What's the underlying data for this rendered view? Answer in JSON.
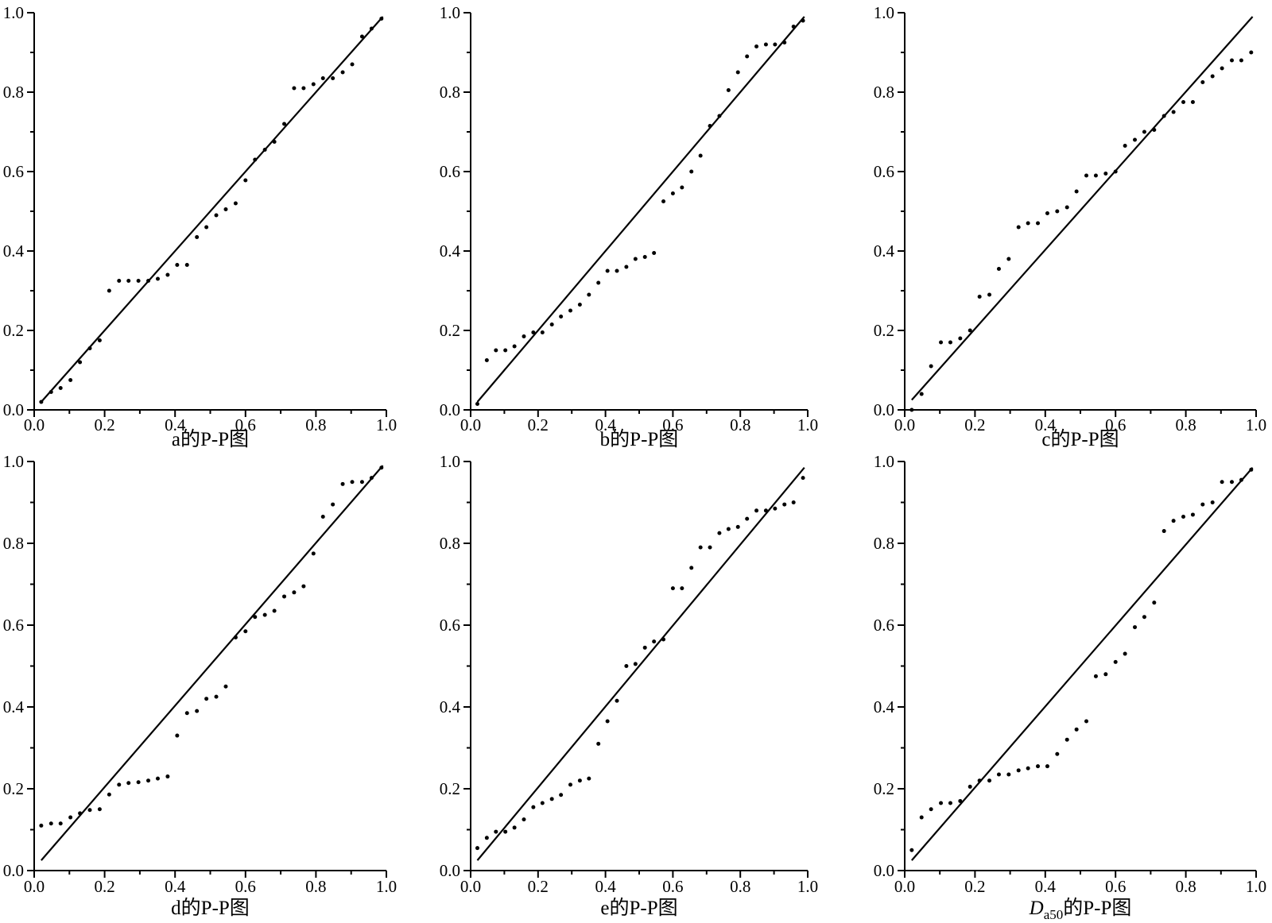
{
  "page": {
    "background": "#ffffff",
    "ink_color": "#000000"
  },
  "chart_data": [
    {
      "type": "scatter",
      "title": "a的P-P图",
      "title_parts": [
        {
          "text": "a"
        },
        {
          "text": "的P-P图"
        }
      ],
      "xlabel": "",
      "ylabel": "",
      "xlim": [
        0,
        1
      ],
      "ylim": [
        0,
        1
      ],
      "x_tick_labels": [
        "0.0",
        "0.2",
        "0.4",
        "0.6",
        "0.8",
        "1.0"
      ],
      "y_tick_labels": [
        "0.0",
        "0.2",
        "0.4",
        "0.6",
        "0.8",
        "1.0"
      ],
      "minor_tick_step": 0.1,
      "grid": false,
      "reference_line": {
        "x1": 0.02,
        "y1": 0.02,
        "x2": 0.99,
        "y2": 0.99
      },
      "point_color": "#000000",
      "line_color": "#000000",
      "x": [
        0.02,
        0.048,
        0.075,
        0.103,
        0.13,
        0.158,
        0.186,
        0.213,
        0.241,
        0.268,
        0.296,
        0.324,
        0.351,
        0.379,
        0.406,
        0.434,
        0.462,
        0.489,
        0.517,
        0.544,
        0.572,
        0.6,
        0.627,
        0.655,
        0.682,
        0.71,
        0.738,
        0.765,
        0.793,
        0.82,
        0.848,
        0.876,
        0.903,
        0.931,
        0.958,
        0.986
      ],
      "y": [
        0.02,
        0.045,
        0.055,
        0.075,
        0.12,
        0.155,
        0.175,
        0.3,
        0.325,
        0.325,
        0.325,
        0.325,
        0.33,
        0.34,
        0.365,
        0.365,
        0.435,
        0.46,
        0.49,
        0.505,
        0.52,
        0.578,
        0.63,
        0.655,
        0.675,
        0.72,
        0.81,
        0.81,
        0.82,
        0.835,
        0.835,
        0.85,
        0.87,
        0.94,
        0.96,
        0.985
      ]
    },
    {
      "type": "scatter",
      "title": "b的P-P图",
      "title_parts": [
        {
          "text": "b"
        },
        {
          "text": "的P-P图"
        }
      ],
      "xlabel": "",
      "ylabel": "",
      "xlim": [
        0,
        1
      ],
      "ylim": [
        0,
        1
      ],
      "x_tick_labels": [
        "0.0",
        "0.2",
        "0.4",
        "0.6",
        "0.8",
        "1.0"
      ],
      "y_tick_labels": [
        "0.0",
        "0.2",
        "0.4",
        "0.6",
        "0.8",
        "1.0"
      ],
      "minor_tick_step": 0.1,
      "grid": false,
      "reference_line": {
        "x1": 0.02,
        "y1": 0.02,
        "x2": 0.99,
        "y2": 0.99
      },
      "point_color": "#000000",
      "line_color": "#000000",
      "x": [
        0.02,
        0.048,
        0.075,
        0.103,
        0.13,
        0.158,
        0.186,
        0.213,
        0.241,
        0.268,
        0.296,
        0.324,
        0.351,
        0.379,
        0.406,
        0.434,
        0.462,
        0.489,
        0.517,
        0.544,
        0.572,
        0.6,
        0.627,
        0.655,
        0.682,
        0.71,
        0.738,
        0.765,
        0.793,
        0.82,
        0.848,
        0.876,
        0.903,
        0.931,
        0.958,
        0.986
      ],
      "y": [
        0.015,
        0.125,
        0.15,
        0.15,
        0.16,
        0.185,
        0.195,
        0.195,
        0.215,
        0.235,
        0.25,
        0.265,
        0.29,
        0.32,
        0.35,
        0.35,
        0.36,
        0.38,
        0.385,
        0.395,
        0.525,
        0.545,
        0.56,
        0.6,
        0.64,
        0.715,
        0.74,
        0.805,
        0.85,
        0.89,
        0.915,
        0.92,
        0.92,
        0.925,
        0.965,
        0.98
      ]
    },
    {
      "type": "scatter",
      "title": "c的P-P图",
      "title_parts": [
        {
          "text": "c"
        },
        {
          "text": "的P-P图"
        }
      ],
      "xlabel": "",
      "ylabel": "",
      "xlim": [
        0,
        1
      ],
      "ylim": [
        0,
        1
      ],
      "x_tick_labels": [
        "0.0",
        "0.2",
        "0.4",
        "0.6",
        "0.8",
        "1.0"
      ],
      "y_tick_labels": [
        "0.0",
        "0.2",
        "0.4",
        "0.6",
        "0.8",
        "1.0"
      ],
      "minor_tick_step": 0.1,
      "grid": false,
      "reference_line": {
        "x1": 0.02,
        "y1": 0.025,
        "x2": 0.99,
        "y2": 0.99
      },
      "point_color": "#000000",
      "line_color": "#000000",
      "x": [
        0.02,
        0.048,
        0.075,
        0.103,
        0.13,
        0.158,
        0.186,
        0.213,
        0.241,
        0.268,
        0.296,
        0.324,
        0.351,
        0.379,
        0.406,
        0.434,
        0.462,
        0.489,
        0.517,
        0.544,
        0.572,
        0.6,
        0.627,
        0.655,
        0.682,
        0.71,
        0.738,
        0.765,
        0.793,
        0.82,
        0.848,
        0.876,
        0.903,
        0.931,
        0.958,
        0.986
      ],
      "y": [
        0.0,
        0.04,
        0.11,
        0.17,
        0.17,
        0.18,
        0.2,
        0.285,
        0.29,
        0.355,
        0.38,
        0.46,
        0.47,
        0.47,
        0.495,
        0.5,
        0.51,
        0.55,
        0.59,
        0.59,
        0.595,
        0.6,
        0.665,
        0.68,
        0.7,
        0.705,
        0.74,
        0.75,
        0.775,
        0.775,
        0.825,
        0.84,
        0.86,
        0.88,
        0.88,
        0.9
      ]
    },
    {
      "type": "scatter",
      "title": "d的P-P图",
      "title_parts": [
        {
          "text": "d"
        },
        {
          "text": "的P-P图"
        }
      ],
      "xlabel": "",
      "ylabel": "",
      "xlim": [
        0,
        1
      ],
      "ylim": [
        0,
        1
      ],
      "x_tick_labels": [
        "0.0",
        "0.2",
        "0.4",
        "0.6",
        "0.8",
        "1.0"
      ],
      "y_tick_labels": [
        "0.0",
        "0.2",
        "0.4",
        "0.6",
        "0.8",
        "1.0"
      ],
      "minor_tick_step": 0.1,
      "grid": false,
      "reference_line": {
        "x1": 0.02,
        "y1": 0.025,
        "x2": 0.99,
        "y2": 0.99
      },
      "point_color": "#000000",
      "line_color": "#000000",
      "x": [
        0.02,
        0.048,
        0.075,
        0.103,
        0.13,
        0.158,
        0.186,
        0.213,
        0.241,
        0.268,
        0.296,
        0.324,
        0.351,
        0.379,
        0.406,
        0.434,
        0.462,
        0.489,
        0.517,
        0.544,
        0.572,
        0.6,
        0.627,
        0.655,
        0.682,
        0.71,
        0.738,
        0.765,
        0.793,
        0.82,
        0.848,
        0.876,
        0.903,
        0.931,
        0.958,
        0.986
      ],
      "y": [
        0.11,
        0.115,
        0.115,
        0.13,
        0.14,
        0.148,
        0.15,
        0.186,
        0.21,
        0.214,
        0.216,
        0.22,
        0.225,
        0.23,
        0.33,
        0.385,
        0.39,
        0.42,
        0.425,
        0.45,
        0.57,
        0.585,
        0.62,
        0.625,
        0.635,
        0.67,
        0.68,
        0.695,
        0.775,
        0.865,
        0.895,
        0.945,
        0.95,
        0.95,
        0.96,
        0.985
      ]
    },
    {
      "type": "scatter",
      "title": "e的P-P图",
      "title_parts": [
        {
          "text": "e"
        },
        {
          "text": "的P-P图"
        }
      ],
      "xlabel": "",
      "ylabel": "",
      "xlim": [
        0,
        1
      ],
      "ylim": [
        0,
        1
      ],
      "x_tick_labels": [
        "0.0",
        "0.2",
        "0.4",
        "0.6",
        "0.8",
        "1.0"
      ],
      "y_tick_labels": [
        "0.0",
        "0.2",
        "0.4",
        "0.6",
        "0.8",
        "1.0"
      ],
      "minor_tick_step": 0.1,
      "grid": false,
      "reference_line": {
        "x1": 0.02,
        "y1": 0.025,
        "x2": 0.99,
        "y2": 0.985
      },
      "point_color": "#000000",
      "line_color": "#000000",
      "x": [
        0.02,
        0.048,
        0.075,
        0.103,
        0.13,
        0.158,
        0.186,
        0.213,
        0.241,
        0.268,
        0.296,
        0.324,
        0.351,
        0.379,
        0.406,
        0.434,
        0.462,
        0.489,
        0.517,
        0.544,
        0.572,
        0.6,
        0.627,
        0.655,
        0.682,
        0.71,
        0.738,
        0.765,
        0.793,
        0.82,
        0.848,
        0.876,
        0.903,
        0.931,
        0.958,
        0.986
      ],
      "y": [
        0.055,
        0.08,
        0.095,
        0.095,
        0.105,
        0.125,
        0.155,
        0.165,
        0.175,
        0.185,
        0.21,
        0.22,
        0.225,
        0.31,
        0.365,
        0.415,
        0.5,
        0.505,
        0.545,
        0.56,
        0.565,
        0.69,
        0.69,
        0.74,
        0.79,
        0.79,
        0.825,
        0.835,
        0.84,
        0.86,
        0.88,
        0.88,
        0.885,
        0.895,
        0.9,
        0.96
      ]
    },
    {
      "type": "scatter",
      "title": "Da50的P-P图",
      "title_parts": [
        {
          "text": "D",
          "italic": true
        },
        {
          "text": "a50",
          "sub": true
        },
        {
          "text": "的P-P图"
        }
      ],
      "xlabel": "",
      "ylabel": "",
      "xlim": [
        0,
        1
      ],
      "ylim": [
        0,
        1
      ],
      "x_tick_labels": [
        "0.0",
        "0.2",
        "0.4",
        "0.6",
        "0.8",
        "1.0"
      ],
      "y_tick_labels": [
        "0.0",
        "0.2",
        "0.4",
        "0.6",
        "0.8",
        "1.0"
      ],
      "minor_tick_step": 0.1,
      "grid": false,
      "reference_line": {
        "x1": 0.02,
        "y1": 0.025,
        "x2": 0.99,
        "y2": 0.985
      },
      "point_color": "#000000",
      "line_color": "#000000",
      "x": [
        0.02,
        0.048,
        0.075,
        0.103,
        0.13,
        0.158,
        0.186,
        0.213,
        0.241,
        0.268,
        0.296,
        0.324,
        0.351,
        0.379,
        0.406,
        0.434,
        0.462,
        0.489,
        0.517,
        0.544,
        0.572,
        0.6,
        0.627,
        0.655,
        0.682,
        0.71,
        0.738,
        0.765,
        0.793,
        0.82,
        0.848,
        0.876,
        0.903,
        0.931,
        0.958,
        0.986
      ],
      "y": [
        0.05,
        0.13,
        0.15,
        0.165,
        0.165,
        0.17,
        0.205,
        0.22,
        0.22,
        0.235,
        0.235,
        0.245,
        0.25,
        0.255,
        0.255,
        0.285,
        0.32,
        0.345,
        0.365,
        0.475,
        0.48,
        0.51,
        0.53,
        0.595,
        0.62,
        0.655,
        0.83,
        0.855,
        0.865,
        0.87,
        0.895,
        0.9,
        0.95,
        0.95,
        0.955,
        0.98
      ]
    }
  ]
}
